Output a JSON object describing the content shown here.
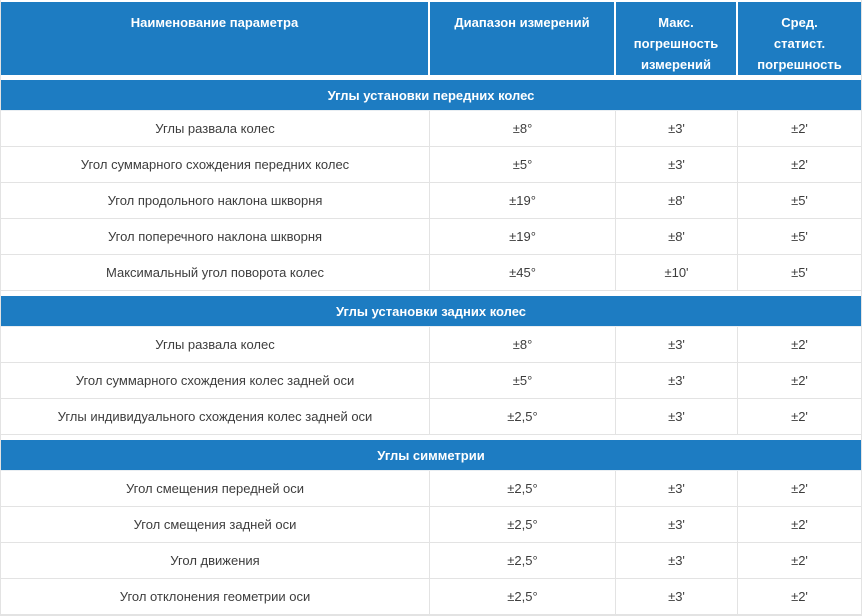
{
  "table": {
    "columns": [
      "Наименование параметра",
      "Диапазон измерений",
      "Макс.\nпогрешность\nизмерений",
      "Сред.\nстатист.\nпогрешность"
    ],
    "sections": [
      {
        "title": "Углы установки передних колес",
        "rows": [
          [
            "Углы развала колес",
            "±8°",
            "±3'",
            "±2'"
          ],
          [
            "Угол суммарного схождения передних колес",
            "±5°",
            "±3'",
            "±2'"
          ],
          [
            "Угол продольного наклона шкворня",
            "±19°",
            "±8'",
            "±5'"
          ],
          [
            "Угол поперечного наклона шкворня",
            "±19°",
            "±8'",
            "±5'"
          ],
          [
            "Максимальный угол поворота колес",
            "±45°",
            "±10'",
            "±5'"
          ]
        ]
      },
      {
        "title": "Углы установки задних колес",
        "rows": [
          [
            "Углы развала колес",
            "±8°",
            "±3'",
            "±2'"
          ],
          [
            "Угол суммарного схождения колес задней оси",
            "±5°",
            "±3'",
            "±2'"
          ],
          [
            "Углы индивидуального схождения колес задней оси",
            "±2,5°",
            "±3'",
            "±2'"
          ]
        ]
      },
      {
        "title": "Углы симметрии",
        "rows": [
          [
            "Угол смещения передней оси",
            "±2,5°",
            "±3'",
            "±2'"
          ],
          [
            "Угол смещения задней оси",
            "±2,5°",
            "±3'",
            "±2'"
          ],
          [
            "Угол движения",
            "±2,5°",
            "±3'",
            "±2'"
          ],
          [
            "Угол отклонения геометрии оси",
            "±2,5°",
            "±3'",
            "±2'"
          ]
        ]
      }
    ],
    "colors": {
      "header_bg": "#1d7cc2",
      "header_text": "#ffffff",
      "body_text": "#3d3d3d",
      "border": "#e3e3e3"
    }
  }
}
